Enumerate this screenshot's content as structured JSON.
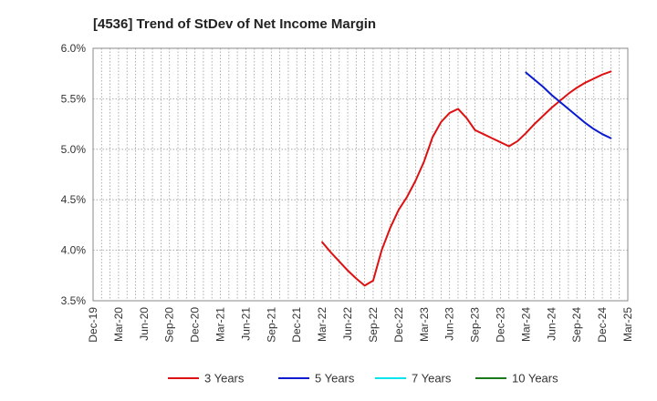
{
  "chart_data": {
    "type": "line",
    "title": "[4536]  Trend of StDev of Net Income Margin",
    "xlabel": "",
    "ylabel": "",
    "ylim": [
      3.5,
      6.0
    ],
    "y_ticks": [
      3.5,
      4.0,
      4.5,
      5.0,
      5.5,
      6.0
    ],
    "y_tick_labels": [
      "3.5%",
      "4.0%",
      "4.5%",
      "5.0%",
      "5.5%",
      "6.0%"
    ],
    "x_tick_labels": [
      "Dec-19",
      "Mar-20",
      "Jun-20",
      "Sep-20",
      "Dec-20",
      "Mar-21",
      "Jun-21",
      "Sep-21",
      "Dec-21",
      "Mar-22",
      "Jun-22",
      "Sep-22",
      "Dec-22",
      "Mar-23",
      "Jun-23",
      "Sep-23",
      "Dec-23",
      "Mar-24",
      "Jun-24",
      "Sep-24",
      "Dec-24",
      "Mar-25"
    ],
    "grid": true,
    "legend_position": "bottom",
    "series": [
      {
        "name": "3 Years",
        "color": "#dd1111",
        "points": [
          [
            "Mar-22",
            4.08
          ],
          [
            "Apr-22",
            3.98
          ],
          [
            "May-22",
            3.89
          ],
          [
            "Jun-22",
            3.8
          ],
          [
            "Jul-22",
            3.72
          ],
          [
            "Aug-22",
            3.65
          ],
          [
            "Sep-22",
            3.7
          ],
          [
            "Oct-22",
            4.0
          ],
          [
            "Nov-22",
            4.22
          ],
          [
            "Dec-22",
            4.4
          ],
          [
            "Jan-23",
            4.53
          ],
          [
            "Feb-23",
            4.69
          ],
          [
            "Mar-23",
            4.88
          ],
          [
            "Apr-23",
            5.12
          ],
          [
            "May-23",
            5.27
          ],
          [
            "Jun-23",
            5.36
          ],
          [
            "Jul-23",
            5.4
          ],
          [
            "Aug-23",
            5.31
          ],
          [
            "Sep-23",
            5.19
          ],
          [
            "Oct-23",
            5.15
          ],
          [
            "Nov-23",
            5.11
          ],
          [
            "Dec-23",
            5.07
          ],
          [
            "Jan-24",
            5.03
          ],
          [
            "Feb-24",
            5.08
          ],
          [
            "Mar-24",
            5.16
          ],
          [
            "Apr-24",
            5.25
          ],
          [
            "May-24",
            5.33
          ],
          [
            "Jun-24",
            5.41
          ],
          [
            "Jul-24",
            5.48
          ],
          [
            "Aug-24",
            5.55
          ],
          [
            "Sep-24",
            5.61
          ],
          [
            "Oct-24",
            5.66
          ],
          [
            "Nov-24",
            5.7
          ],
          [
            "Dec-24",
            5.74
          ],
          [
            "Jan-25",
            5.77
          ]
        ]
      },
      {
        "name": "5 Years",
        "color": "#0a1ad0",
        "points": [
          [
            "Mar-24",
            5.76
          ],
          [
            "Apr-24",
            5.69
          ],
          [
            "May-24",
            5.62
          ],
          [
            "Jun-24",
            5.54
          ],
          [
            "Jul-24",
            5.47
          ],
          [
            "Aug-24",
            5.4
          ],
          [
            "Sep-24",
            5.33
          ],
          [
            "Oct-24",
            5.26
          ],
          [
            "Nov-24",
            5.2
          ],
          [
            "Dec-24",
            5.15
          ],
          [
            "Jan-25",
            5.11
          ]
        ]
      },
      {
        "name": "7 Years",
        "color": "#00e5ee",
        "points": []
      },
      {
        "name": "10 Years",
        "color": "#1a7a1a",
        "points": []
      }
    ]
  }
}
